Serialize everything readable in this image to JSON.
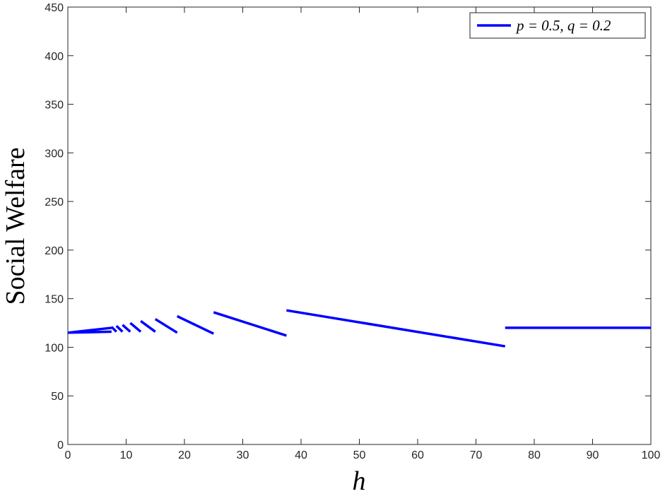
{
  "chart_data": {
    "type": "line",
    "x_label": "h",
    "y_label": "Social Welfare",
    "x": [
      0,
      7.5,
      7.5,
      0,
      7.5,
      7.5,
      7.5,
      8.33,
      8.33,
      8.33,
      9.375,
      9.375,
      9.375,
      10.71,
      10.71,
      10.71,
      12.5,
      12.5,
      12.5,
      15,
      15,
      15,
      18.75,
      18.75,
      18.75,
      25,
      25,
      25,
      37.5,
      37.5,
      37.5,
      75,
      75,
      75,
      100
    ],
    "series": [
      {
        "name": "p = 0.5, q = 0.2",
        "color": "#0000ff",
        "values": [
          115,
          120,
          null,
          115,
          116,
          null,
          121,
          116,
          null,
          122,
          116,
          null,
          123,
          116,
          null,
          125,
          116,
          null,
          127,
          116,
          null,
          129,
          115,
          null,
          132,
          114,
          null,
          136,
          112,
          null,
          138,
          101,
          null,
          120,
          120
        ]
      }
    ],
    "xlim": [
      0,
      100
    ],
    "ylim": [
      0,
      450
    ],
    "xticks": [
      0,
      10,
      20,
      30,
      40,
      50,
      60,
      70,
      80,
      90,
      100
    ],
    "yticks": [
      0,
      50,
      100,
      150,
      200,
      250,
      300,
      350,
      400,
      450
    ],
    "legend": "upper right"
  }
}
